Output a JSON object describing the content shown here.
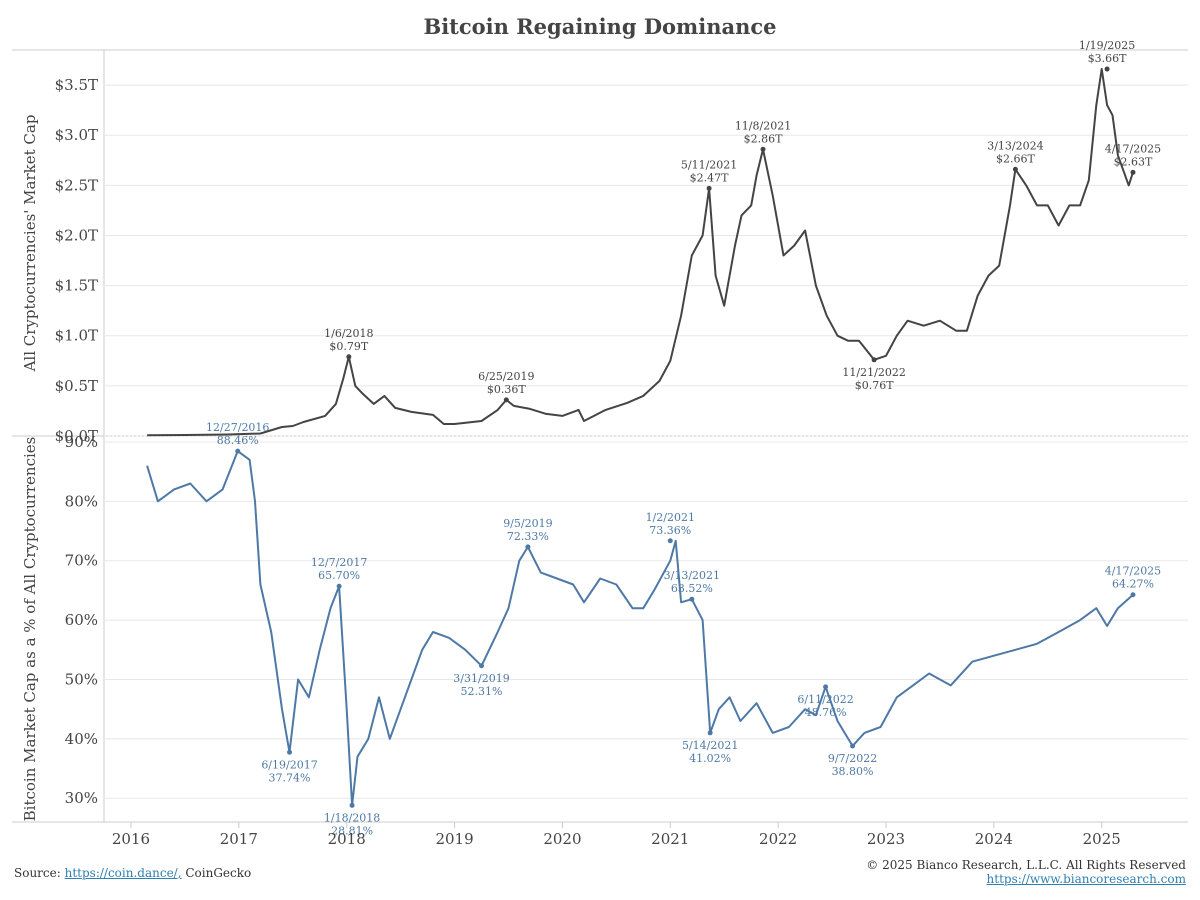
{
  "title": "Bitcoin Regaining Dominance",
  "footer": {
    "source_label": "Source:",
    "source_link": "https://coin.dance/,",
    "source_other": "CoinGecko",
    "copyright": "© 2025 Bianco Research, L.L.C. All Rights Reserved",
    "website": "https://www.biancoresearch.com"
  },
  "colors": {
    "top_line": "#444444",
    "bottom_line": "#4e79a7",
    "grid": "#e8e8e8",
    "frame": "#cccccc"
  },
  "chart_data": [
    {
      "type": "line",
      "ylabel": "All Cryptocurrencies' Market Cap",
      "y_ticks": [
        "$0.0T",
        "$0.5T",
        "$1.0T",
        "$1.5T",
        "$2.0T",
        "$2.5T",
        "$3.0T",
        "$3.5T"
      ],
      "ylim": [
        0,
        3.85
      ],
      "x_ticks": [
        "2016",
        "2017",
        "2018",
        "2019",
        "2020",
        "2021",
        "2022",
        "2023",
        "2024",
        "2025"
      ],
      "xlim": [
        2015.75,
        2025.8
      ],
      "grid": true,
      "series": [
        {
          "x": [
            2016.15,
            2016.5,
            2016.9,
            2017.2,
            2017.4,
            2017.5,
            2017.6,
            2017.8,
            2017.9,
            2017.97,
            2018.02,
            2018.08,
            2018.15,
            2018.25,
            2018.35,
            2018.45,
            2018.6,
            2018.8,
            2018.9,
            2019.0,
            2019.25,
            2019.4,
            2019.48,
            2019.55,
            2019.7,
            2019.85,
            2020.0,
            2020.15,
            2020.2,
            2020.4,
            2020.6,
            2020.75,
            2020.9,
            2021.0,
            2021.1,
            2021.2,
            2021.3,
            2021.36,
            2021.42,
            2021.5,
            2021.6,
            2021.66,
            2021.75,
            2021.8,
            2021.86,
            2021.95,
            2022.05,
            2022.15,
            2022.25,
            2022.35,
            2022.45,
            2022.55,
            2022.65,
            2022.75,
            2022.89,
            2023.0,
            2023.1,
            2023.2,
            2023.35,
            2023.5,
            2023.65,
            2023.75,
            2023.85,
            2023.95,
            2024.05,
            2024.15,
            2024.2,
            2024.3,
            2024.4,
            2024.5,
            2024.6,
            2024.7,
            2024.8,
            2024.88,
            2024.95,
            2025.0,
            2025.05,
            2025.1,
            2025.15,
            2025.2,
            2025.25,
            2025.29
          ],
          "values": [
            0.007,
            0.01,
            0.015,
            0.025,
            0.09,
            0.1,
            0.14,
            0.2,
            0.32,
            0.58,
            0.79,
            0.5,
            0.42,
            0.32,
            0.4,
            0.28,
            0.24,
            0.21,
            0.12,
            0.12,
            0.15,
            0.26,
            0.36,
            0.3,
            0.27,
            0.22,
            0.2,
            0.26,
            0.15,
            0.26,
            0.33,
            0.4,
            0.55,
            0.75,
            1.2,
            1.8,
            2.0,
            2.47,
            1.6,
            1.3,
            1.9,
            2.2,
            2.3,
            2.6,
            2.86,
            2.4,
            1.8,
            1.9,
            2.05,
            1.5,
            1.2,
            1.0,
            0.95,
            0.95,
            0.76,
            0.8,
            1.0,
            1.15,
            1.1,
            1.15,
            1.05,
            1.05,
            1.4,
            1.6,
            1.7,
            2.3,
            2.66,
            2.5,
            2.3,
            2.3,
            2.1,
            2.3,
            2.3,
            2.55,
            3.3,
            3.66,
            3.3,
            3.2,
            2.8,
            2.65,
            2.5,
            2.63
          ]
        }
      ],
      "annotations": [
        {
          "date": "1/6/2018",
          "value": "$0.79T",
          "x": 2018.02,
          "y": 0.79
        },
        {
          "date": "6/25/2019",
          "value": "$0.36T",
          "x": 2019.48,
          "y": 0.36
        },
        {
          "date": "5/11/2021",
          "value": "$2.47T",
          "x": 2021.36,
          "y": 2.47
        },
        {
          "date": "11/8/2021",
          "value": "$2.86T",
          "x": 2021.86,
          "y": 2.86
        },
        {
          "date": "11/21/2022",
          "value": "$0.76T",
          "x": 2022.89,
          "y": 0.76
        },
        {
          "date": "3/13/2024",
          "value": "$2.66T",
          "x": 2024.2,
          "y": 2.66
        },
        {
          "date": "1/19/2025",
          "value": "$3.66T",
          "x": 2025.05,
          "y": 3.66
        },
        {
          "date": "4/17/2025",
          "value": "$2.63T",
          "x": 2025.29,
          "y": 2.63
        }
      ]
    },
    {
      "type": "line",
      "ylabel": "Bitcoin Market Cap as a % of All Cryptocurrencies",
      "y_ticks": [
        "30%",
        "40%",
        "50%",
        "60%",
        "70%",
        "80%",
        "90%"
      ],
      "ylim": [
        26,
        91
      ],
      "x_ticks": [
        "2016",
        "2017",
        "2018",
        "2019",
        "2020",
        "2021",
        "2022",
        "2023",
        "2024",
        "2025"
      ],
      "xlim": [
        2015.75,
        2025.8
      ],
      "grid": true,
      "series": [
        {
          "x": [
            2016.15,
            2016.25,
            2016.4,
            2016.55,
            2016.7,
            2016.85,
            2016.99,
            2017.1,
            2017.15,
            2017.2,
            2017.3,
            2017.4,
            2017.47,
            2017.55,
            2017.65,
            2017.75,
            2017.85,
            2017.93,
            2018.0,
            2018.05,
            2018.1,
            2018.2,
            2018.3,
            2018.4,
            2018.5,
            2018.6,
            2018.7,
            2018.8,
            2018.95,
            2019.1,
            2019.25,
            2019.4,
            2019.5,
            2019.6,
            2019.68,
            2019.8,
            2019.95,
            2020.1,
            2020.2,
            2020.35,
            2020.5,
            2020.65,
            2020.75,
            2020.85,
            2021.0,
            2021.05,
            2021.1,
            2021.2,
            2021.3,
            2021.37,
            2021.45,
            2021.55,
            2021.65,
            2021.8,
            2021.95,
            2022.1,
            2022.25,
            2022.35,
            2022.44,
            2022.55,
            2022.69,
            2022.8,
            2022.95,
            2023.1,
            2023.25,
            2023.4,
            2023.6,
            2023.8,
            2024.0,
            2024.2,
            2024.4,
            2024.6,
            2024.8,
            2024.95,
            2025.05,
            2025.15,
            2025.29
          ],
          "values": [
            86,
            80,
            82,
            83,
            80,
            82,
            88.46,
            87,
            80,
            66,
            58,
            45,
            37.74,
            50,
            47,
            55,
            62,
            65.7,
            45,
            28.81,
            37,
            40,
            47,
            40,
            45,
            50,
            55,
            58,
            57,
            55,
            52.31,
            58,
            62,
            70,
            72.33,
            68,
            67,
            66,
            63,
            67,
            66,
            62,
            62,
            65,
            70,
            73.36,
            63,
            63.52,
            60,
            41.02,
            45,
            47,
            43,
            46,
            41,
            42,
            45,
            44,
            48.76,
            43,
            38.8,
            41,
            42,
            47,
            49,
            51,
            49,
            53,
            54,
            55,
            56,
            58,
            60,
            62,
            59,
            62,
            64.27
          ]
        }
      ],
      "annotations": [
        {
          "date": "12/27/2016",
          "value": "88.46%",
          "x": 2016.99,
          "y": 88.46
        },
        {
          "date": "6/19/2017",
          "value": "37.74%",
          "x": 2017.47,
          "y": 37.74
        },
        {
          "date": "12/7/2017",
          "value": "65.70%",
          "x": 2017.93,
          "y": 65.7
        },
        {
          "date": "1/18/2018",
          "value": "28.81%",
          "x": 2018.05,
          "y": 28.81
        },
        {
          "date": "3/31/2019",
          "value": "52.31%",
          "x": 2019.25,
          "y": 52.31
        },
        {
          "date": "9/5/2019",
          "value": "72.33%",
          "x": 2019.68,
          "y": 72.33
        },
        {
          "date": "1/2/2021",
          "value": "73.36%",
          "x": 2021.0,
          "y": 73.36
        },
        {
          "date": "3/13/2021",
          "value": "63.52%",
          "x": 2021.2,
          "y": 63.52
        },
        {
          "date": "5/14/2021",
          "value": "41.02%",
          "x": 2021.37,
          "y": 41.02
        },
        {
          "date": "6/11/2022",
          "value": "48.76%",
          "x": 2022.44,
          "y": 48.76
        },
        {
          "date": "9/7/2022",
          "value": "38.80%",
          "x": 2022.69,
          "y": 38.8
        },
        {
          "date": "4/17/2025",
          "value": "64.27%",
          "x": 2025.29,
          "y": 64.27
        }
      ]
    }
  ]
}
